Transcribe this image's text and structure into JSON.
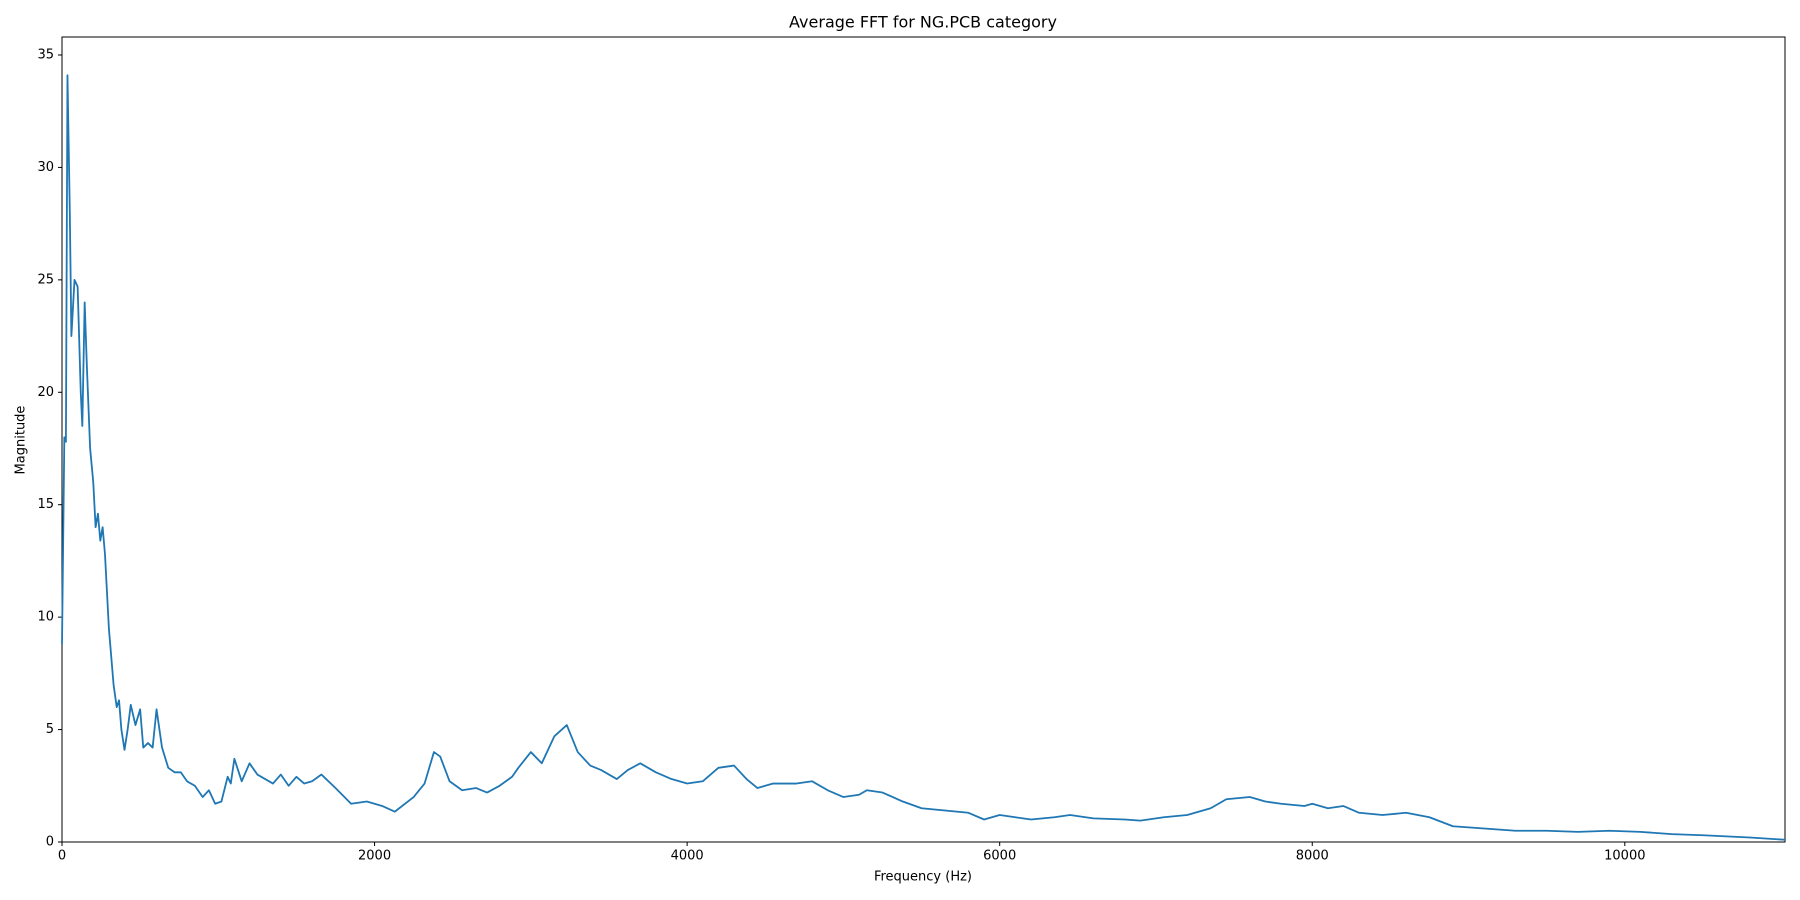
{
  "chart_data": {
    "type": "line",
    "title": "Average FFT for NG.PCB category",
    "x_label": "Frequency (Hz)",
    "y_label": "Magnitude",
    "color": "#1f77b4",
    "xlim": [
      0,
      11025
    ],
    "ylim": [
      0,
      35.8
    ],
    "xticks": [
      0,
      2000,
      4000,
      6000,
      8000,
      10000
    ],
    "yticks": [
      0,
      5,
      10,
      15,
      20,
      25,
      30,
      35
    ],
    "x": [
      0,
      15,
      25,
      35,
      50,
      60,
      80,
      100,
      120,
      130,
      145,
      160,
      180,
      200,
      215,
      230,
      245,
      260,
      275,
      300,
      330,
      350,
      365,
      380,
      400,
      420,
      440,
      470,
      500,
      520,
      550,
      580,
      605,
      640,
      680,
      720,
      760,
      800,
      850,
      900,
      940,
      980,
      1020,
      1060,
      1080,
      1103,
      1150,
      1200,
      1250,
      1300,
      1350,
      1400,
      1450,
      1500,
      1550,
      1600,
      1660,
      1750,
      1850,
      1950,
      2050,
      2130,
      2250,
      2320,
      2380,
      2420,
      2480,
      2560,
      2650,
      2720,
      2800,
      2880,
      2920,
      3000,
      3070,
      3150,
      3230,
      3300,
      3380,
      3450,
      3550,
      3620,
      3700,
      3800,
      3900,
      4000,
      4100,
      4200,
      4300,
      4380,
      4450,
      4550,
      4700,
      4800,
      4900,
      5000,
      5100,
      5150,
      5250,
      5380,
      5500,
      5650,
      5800,
      5900,
      6000,
      6100,
      6200,
      6350,
      6450,
      6600,
      6800,
      6900,
      7050,
      7200,
      7350,
      7450,
      7600,
      7700,
      7800,
      7950,
      8000,
      8100,
      8200,
      8300,
      8450,
      8600,
      8750,
      8900,
      9100,
      9300,
      9500,
      9700,
      9900,
      10100,
      10300,
      10500,
      10800,
      11025
    ],
    "values": [
      8.8,
      18,
      17.8,
      34.1,
      28,
      22.5,
      25,
      24.7,
      20,
      18.5,
      24,
      21,
      17.5,
      16,
      14,
      14.6,
      13.4,
      14,
      12.8,
      9.5,
      7,
      6,
      6.3,
      5,
      4.1,
      5,
      6.1,
      5.2,
      5.9,
      4.2,
      4.4,
      4.2,
      5.9,
      4.2,
      3.3,
      3.1,
      3.1,
      2.7,
      2.5,
      2.0,
      2.3,
      1.7,
      1.8,
      2.9,
      2.6,
      3.7,
      2.7,
      3.5,
      3.0,
      2.8,
      2.6,
      3.0,
      2.5,
      2.9,
      2.6,
      2.7,
      3.0,
      2.4,
      1.7,
      1.8,
      1.6,
      1.35,
      2.0,
      2.6,
      4.0,
      3.8,
      2.7,
      2.3,
      2.4,
      2.2,
      2.5,
      2.9,
      3.3,
      4.0,
      3.5,
      4.7,
      5.2,
      4.0,
      3.4,
      3.2,
      2.8,
      3.2,
      3.5,
      3.1,
      2.8,
      2.6,
      2.7,
      3.3,
      3.4,
      2.8,
      2.4,
      2.6,
      2.6,
      2.7,
      2.3,
      2.0,
      2.1,
      2.3,
      2.2,
      1.8,
      1.5,
      1.4,
      1.3,
      1.0,
      1.2,
      1.1,
      1.0,
      1.1,
      1.2,
      1.05,
      1.0,
      0.95,
      1.1,
      1.2,
      1.5,
      1.9,
      2.0,
      1.8,
      1.7,
      1.6,
      1.7,
      1.5,
      1.6,
      1.3,
      1.2,
      1.3,
      1.1,
      0.7,
      0.6,
      0.5,
      0.5,
      0.45,
      0.5,
      0.45,
      0.35,
      0.3,
      0.2,
      0.1
    ]
  }
}
